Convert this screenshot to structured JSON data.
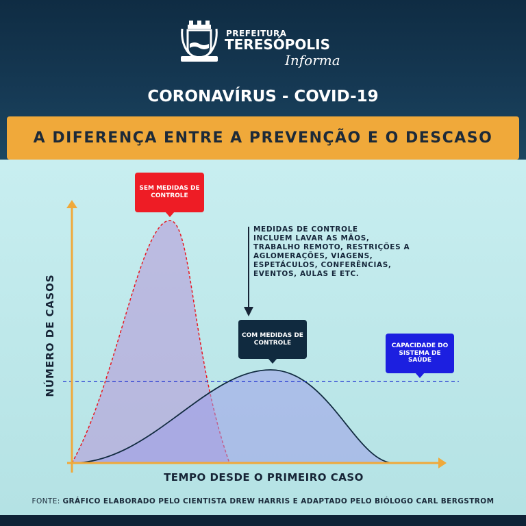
{
  "header": {
    "logo_prefix": "PREFEITURA",
    "logo_city": "TERESÓPOLIS",
    "logo_tagline": "Informa",
    "title": "CORONAVÍRUS - COVID-19"
  },
  "banner": "A DIFERENÇA ENTRE A PREVENÇÃO E O DESCASO",
  "diagram": {
    "y_axis": "NÚMERO DE CASOS",
    "x_axis": "TEMPO DESDE O PRIMEIRO CASO",
    "label_without": "SEM MEDIDAS DE CONTROLE",
    "label_with": "COM MEDIDAS DE CONTROLE",
    "label_capacity": "CAPACIDADE DO SISTEMA DE SAÚDE",
    "note_title": "MEDIDAS DE CONTROLE",
    "note_lines": [
      "INCLUEM LAVAR AS MÃOS,",
      "TRABALHO REMOTO, RESTRIÇÕES A",
      "AGLOMERAÇÕES, VIAGENS,",
      "ESPETÁCULOS, CONFERÊNCIAS,",
      "EVENTOS, AULAS E ETC."
    ],
    "colors": {
      "without": "#e8171f",
      "with": "#102a3f",
      "capacity": "#1a2fd0",
      "axis": "#f0a93a",
      "fill": "#a9a6e8"
    }
  },
  "footer": {
    "source_label": "FONTE:",
    "source_text": "GRÁFICO ELABORADO PELO CIENTISTA DREW HARRIS E ADAPTADO PELO BIÓLOGO CARL BERGSTROM"
  }
}
